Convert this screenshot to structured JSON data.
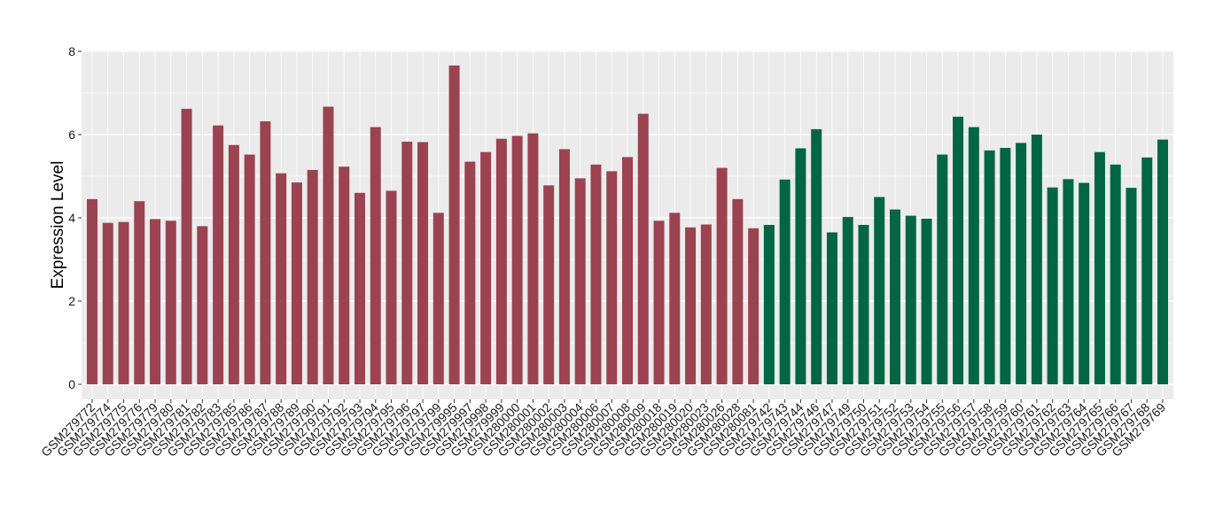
{
  "chart_data": {
    "type": "bar",
    "title": "",
    "xlabel": "",
    "ylabel": "Expression Level",
    "ylim": [
      0,
      8
    ],
    "yticks": [
      0,
      2,
      4,
      6,
      8
    ],
    "grid": true,
    "legend": "none",
    "colors": {
      "group_1": "#9b4350",
      "group_2": "#006644",
      "panel": "#ebebeb",
      "gridline": "#ffffff"
    },
    "categories": [
      "GSM279772",
      "GSM279774",
      "GSM279775",
      "GSM279776",
      "GSM279779",
      "GSM279780",
      "GSM279781",
      "GSM279782",
      "GSM279783",
      "GSM279785",
      "GSM279786",
      "GSM279787",
      "GSM279788",
      "GSM279789",
      "GSM279790",
      "GSM279791",
      "GSM279792",
      "GSM279793",
      "GSM279794",
      "GSM279795",
      "GSM279796",
      "GSM279797",
      "GSM279799",
      "GSM279995",
      "GSM279997",
      "GSM279998",
      "GSM279999",
      "GSM280000",
      "GSM280001",
      "GSM280002",
      "GSM280003",
      "GSM280004",
      "GSM280006",
      "GSM280007",
      "GSM280008",
      "GSM280009",
      "GSM280018",
      "GSM280019",
      "GSM280020",
      "GSM280023",
      "GSM280026",
      "GSM280028",
      "GSM280081",
      "GSM279742",
      "GSM279743",
      "GSM279744",
      "GSM279746",
      "GSM279747",
      "GSM279749",
      "GSM279750",
      "GSM279751",
      "GSM279752",
      "GSM279753",
      "GSM279754",
      "GSM279755",
      "GSM279756",
      "GSM279757",
      "GSM279758",
      "GSM279759",
      "GSM279760",
      "GSM279761",
      "GSM279762",
      "GSM279763",
      "GSM279764",
      "GSM279765",
      "GSM279766",
      "GSM279767",
      "GSM279768",
      "GSM279769"
    ],
    "values": [
      4.45,
      3.88,
      3.9,
      4.4,
      3.97,
      3.93,
      6.62,
      3.8,
      6.22,
      5.75,
      5.52,
      6.32,
      5.07,
      4.85,
      5.15,
      6.67,
      5.23,
      4.6,
      6.18,
      4.65,
      5.83,
      5.82,
      4.12,
      7.66,
      5.35,
      5.58,
      5.9,
      5.97,
      6.03,
      4.78,
      5.65,
      4.95,
      5.28,
      5.12,
      5.46,
      6.5,
      3.93,
      4.12,
      3.77,
      3.84,
      5.2,
      4.45,
      3.75,
      3.83,
      4.92,
      5.67,
      6.13,
      3.65,
      4.02,
      3.83,
      4.5,
      4.2,
      4.05,
      3.98,
      5.52,
      6.43,
      6.18,
      5.62,
      5.68,
      5.8,
      6.0,
      4.73,
      4.93,
      4.84,
      5.58,
      5.28,
      4.72,
      5.45,
      5.88
    ],
    "groups": [
      1,
      1,
      1,
      1,
      1,
      1,
      1,
      1,
      1,
      1,
      1,
      1,
      1,
      1,
      1,
      1,
      1,
      1,
      1,
      1,
      1,
      1,
      1,
      1,
      1,
      1,
      1,
      1,
      1,
      1,
      1,
      1,
      1,
      1,
      1,
      1,
      1,
      1,
      1,
      1,
      1,
      1,
      1,
      2,
      2,
      2,
      2,
      2,
      2,
      2,
      2,
      2,
      2,
      2,
      2,
      2,
      2,
      2,
      2,
      2,
      2,
      2,
      2,
      2,
      2,
      2,
      2,
      2,
      2
    ]
  }
}
